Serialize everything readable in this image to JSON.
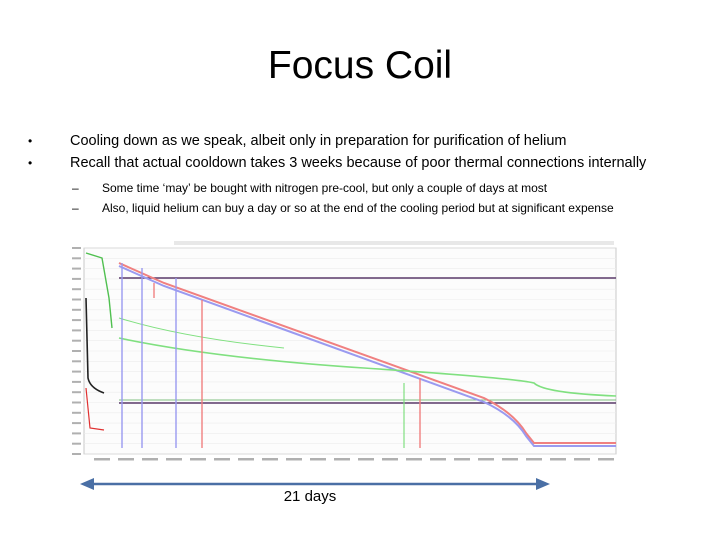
{
  "slide": {
    "title": "Focus Coil",
    "bullets": [
      "Cooling down as we speak, albeit only in preparation for purification of helium",
      "Recall that actual cooldown takes 3 weeks because of poor thermal connections internally"
    ],
    "subbullets": [
      "Some time ‘may’ be bought with nitrogen pre-cool, but only a couple of days at most",
      "Also, liquid helium can buy a day or so at the end of the cooling period but at significant expense"
    ],
    "bullet_glyph": "•",
    "dash_glyph": "–",
    "duration_label": "21 days",
    "arrow_color": "#4a6fa5"
  },
  "chart_data": {
    "type": "line",
    "title": "",
    "xlabel": "",
    "ylabel": "",
    "grid": true,
    "colors": [
      "#f08080",
      "#9a9af0",
      "#5a3a6a",
      "#80e080",
      "#222222",
      "#e03030"
    ],
    "note": "Cooldown temperature plot (screenshot inset); axis tick labels are not legible in the source image."
  }
}
